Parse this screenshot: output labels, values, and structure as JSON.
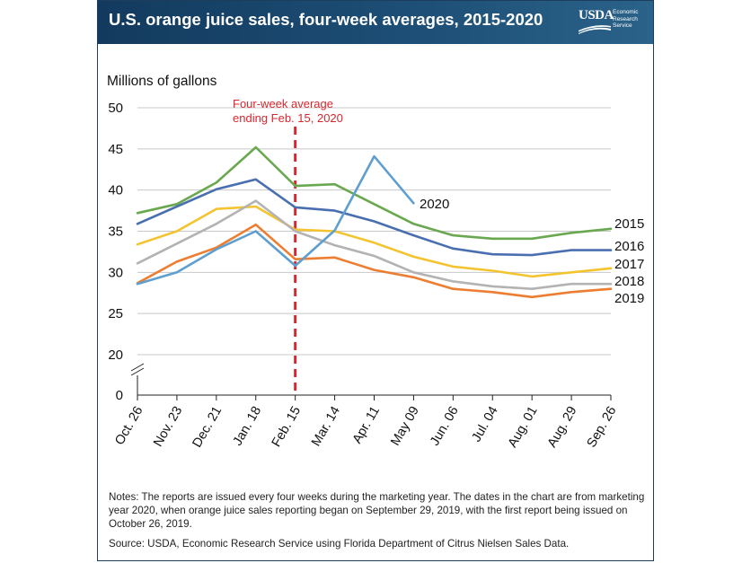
{
  "header": {
    "title": "U.S. orange juice sales, four-week averages, 2015-2020",
    "logo_word": "USDA",
    "logo_sub": [
      "Economic",
      "Research",
      "Service"
    ]
  },
  "colors": {
    "header_bg": "#1a4468",
    "annotation_red": "#d7282f",
    "2015": "#6aa84f",
    "2016": "#4a6fb0",
    "2017": "#f4c430",
    "2018": "#b3b3b3",
    "2019": "#ed7d31",
    "2020": "#5f9fd0"
  },
  "chart_data": {
    "type": "line",
    "ylabel": "Millions of gallons",
    "yticks": [
      0,
      20,
      25,
      30,
      35,
      40,
      45,
      50
    ],
    "ylim": [
      20,
      50
    ],
    "axis_break": true,
    "grid": "horizontal",
    "categories": [
      "Oct. 26",
      "Nov. 23",
      "Dec. 21",
      "Jan. 18",
      "Feb. 15",
      "Mar. 14",
      "Apr. 11",
      "May 09",
      "Jun. 06",
      "Jul. 04",
      "Aug. 01",
      "Aug. 29",
      "Sep. 26"
    ],
    "annotation": {
      "category": "Feb. 15",
      "text": [
        "Four-week average",
        "ending Feb. 15, 2020"
      ]
    },
    "series": [
      {
        "name": "2015",
        "values": [
          37.2,
          38.3,
          40.9,
          45.2,
          40.5,
          40.7,
          38.3,
          35.9,
          34.5,
          34.1,
          34.1,
          34.8,
          35.3
        ]
      },
      {
        "name": "2016",
        "values": [
          35.9,
          38.0,
          40.1,
          41.3,
          37.9,
          37.5,
          36.2,
          34.5,
          32.9,
          32.2,
          32.1,
          32.7,
          32.7
        ]
      },
      {
        "name": "2017",
        "values": [
          33.4,
          35.0,
          37.7,
          38.0,
          35.2,
          35.0,
          33.6,
          31.9,
          30.7,
          30.2,
          29.5,
          30.0,
          30.5
        ]
      },
      {
        "name": "2018",
        "values": [
          31.1,
          33.5,
          35.9,
          38.7,
          35.0,
          33.3,
          32.0,
          30.0,
          28.9,
          28.3,
          28.0,
          28.6,
          28.6
        ]
      },
      {
        "name": "2019",
        "values": [
          28.7,
          31.3,
          33.0,
          35.8,
          31.6,
          31.8,
          30.3,
          29.4,
          28.0,
          27.6,
          27.0,
          27.6,
          28.0
        ]
      },
      {
        "name": "2020",
        "values": [
          28.6,
          30.0,
          32.8,
          35.0,
          30.8,
          35.1,
          44.1,
          38.4,
          null,
          null,
          null,
          null,
          null
        ]
      }
    ]
  },
  "notes": "Notes: The reports are issued every four weeks during the marketing year. The dates in the chart are from marketing year 2020, when orange juice sales reporting began on September 29, 2019, with the first report being issued on October 26, 2019.",
  "source": "Source: USDA, Economic Research Service using Florida Department of Citrus Nielsen Sales Data."
}
